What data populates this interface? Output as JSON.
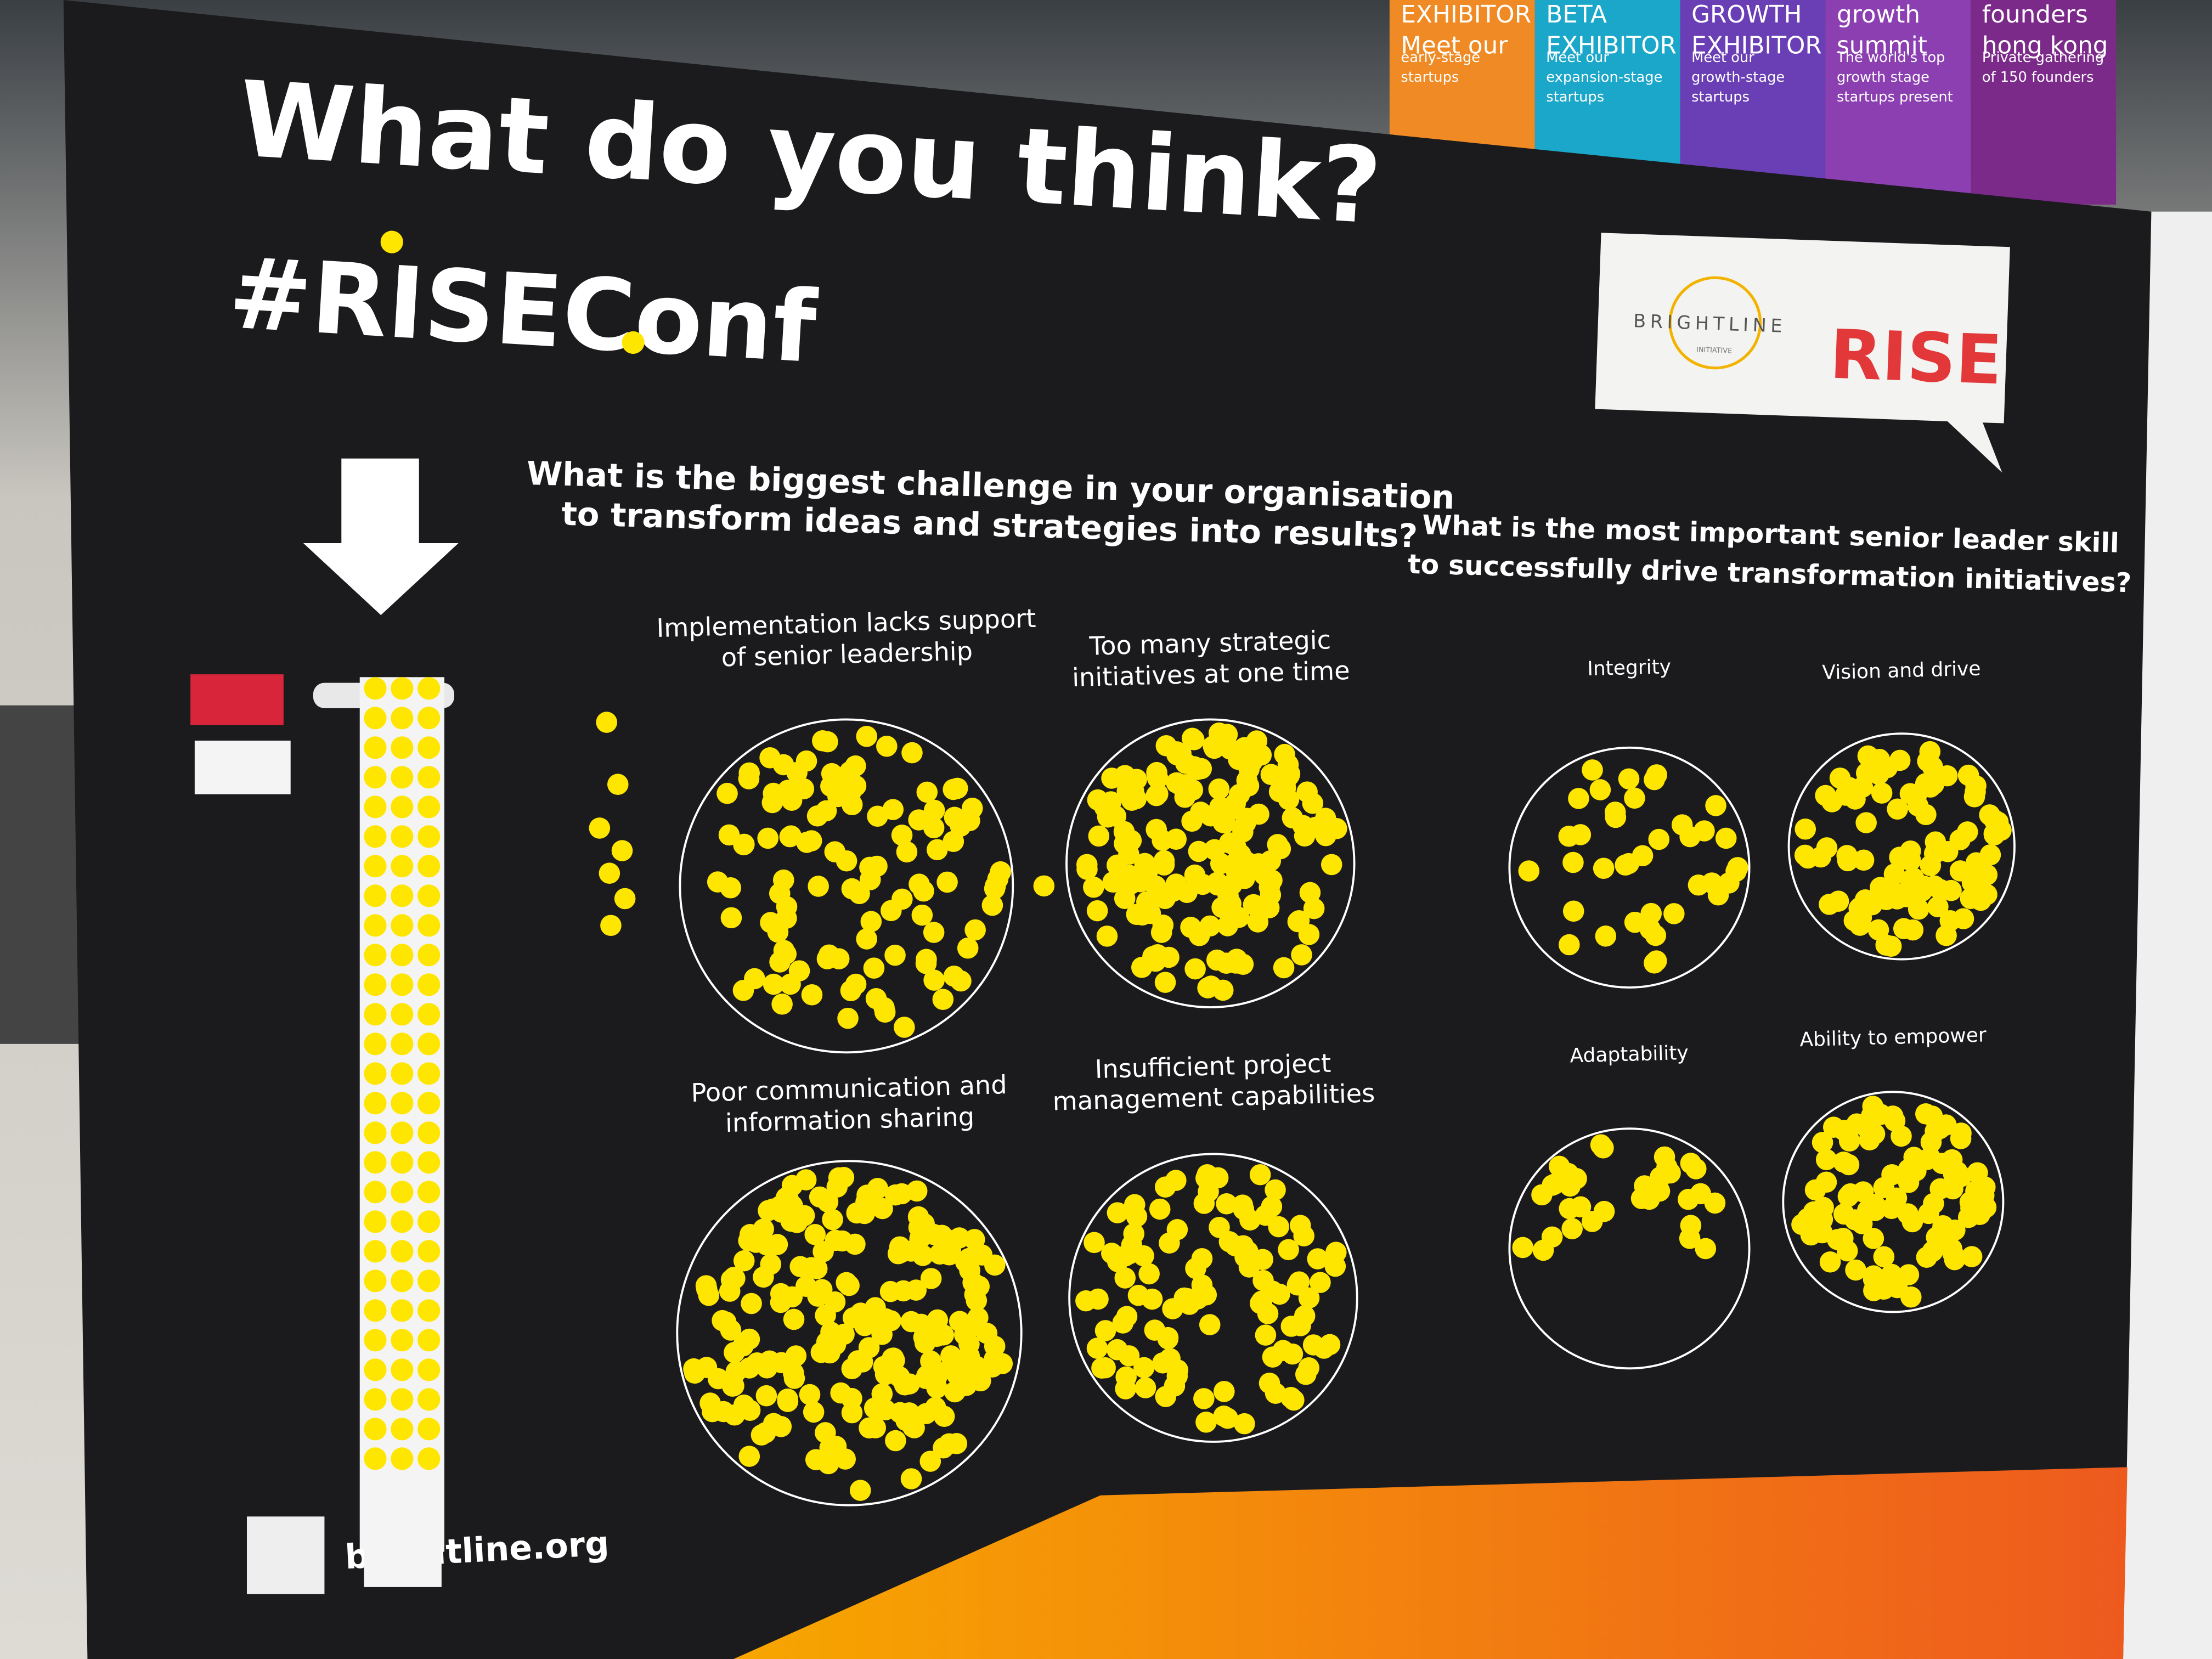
{
  "header": {
    "title": "What do you think?",
    "hashtag": "#RISEConf"
  },
  "banners": [
    {
      "lines": [
        "EXHIBITOR",
        "Meet our",
        "early-stage",
        "startups"
      ]
    },
    {
      "lines": [
        "BETA",
        "EXHIBITOR",
        "Meet our",
        "expansion-stage",
        "startups"
      ]
    },
    {
      "lines": [
        "GROWTH",
        "EXHIBITOR",
        "Meet our",
        "growth-stage",
        "startups"
      ]
    },
    {
      "lines": [
        "growth",
        "summit",
        "The world's top",
        "growth stage",
        "startups present"
      ]
    },
    {
      "lines": [
        "founders",
        "hong kong",
        "Private gathering",
        "of 150 founders"
      ]
    }
  ],
  "logos": {
    "brightline": "BRIGHTLINE",
    "initiative": "INITIATIVE",
    "rise": "RISE"
  },
  "questions": [
    {
      "lines": [
        "What is the biggest challenge in your organisation",
        "to transform ideas and strategies into results?"
      ],
      "options": [
        {
          "lines": [
            "Implementation lacks support",
            "of senior leadership"
          ]
        },
        {
          "lines": [
            "Too many strategic",
            "initiatives at one time"
          ]
        },
        {
          "lines": [
            "Poor communication and",
            "information sharing"
          ]
        },
        {
          "lines": [
            "Insufficient project",
            "management capabilities"
          ]
        }
      ]
    },
    {
      "lines": [
        "What is the most important senior leader skill",
        "to successfully drive transformation initiatives?"
      ],
      "options": [
        {
          "lines": [
            "Integrity"
          ]
        },
        {
          "lines": [
            "Vision and drive"
          ]
        },
        {
          "lines": [
            "Adaptability"
          ]
        },
        {
          "lines": [
            "Ability to empower"
          ]
        }
      ]
    }
  ],
  "footer": {
    "url": "brightline.org"
  }
}
